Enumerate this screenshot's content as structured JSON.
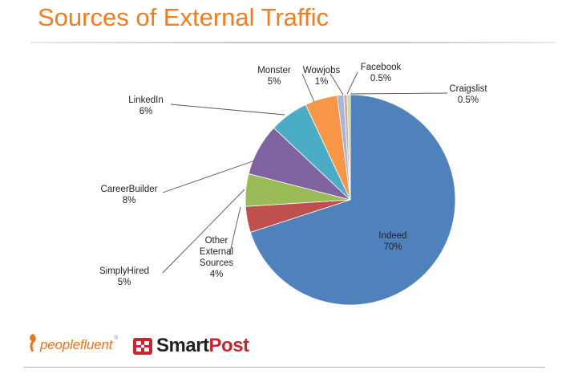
{
  "slide": {
    "title": "Sources of External Traffic"
  },
  "colors": {
    "title": "#f07d1f",
    "accent": "#e8731a",
    "brand_red": "#c8252c"
  },
  "chart_data": {
    "type": "pie",
    "title": "",
    "start_angle_deg": 0,
    "direction": "clockwise",
    "slices": [
      {
        "label": "Indeed",
        "value_label": "70%",
        "value": 70,
        "color": "#4f81bd"
      },
      {
        "label": "Other External Sources",
        "label_lines": [
          "Other",
          "External",
          "Sources"
        ],
        "value_label": "4%",
        "value": 4,
        "color": "#c0504d"
      },
      {
        "label": "SimplyHired",
        "value_label": "5%",
        "value": 5,
        "color": "#9bbb59"
      },
      {
        "label": "CareerBuilder",
        "value_label": "8%",
        "value": 8,
        "color": "#8064a2"
      },
      {
        "label": "LinkedIn",
        "value_label": "6%",
        "value": 6,
        "color": "#4bacc6"
      },
      {
        "label": "Monster",
        "value_label": "5%",
        "value": 5,
        "color": "#f79646"
      },
      {
        "label": "Wowjobs",
        "value_label": "1%",
        "value": 1,
        "color": "#a5b6d8"
      },
      {
        "label": "Facebook",
        "value_label": "0.5%",
        "value": 0.5,
        "color": "#d3a6a4"
      },
      {
        "label": "Craigslist",
        "value_label": "0.5%",
        "value": 0.5,
        "color": "#c9d69e"
      }
    ]
  },
  "footer": {
    "logo_peoplefluent": "peoplefluent",
    "logo_peoplefluent_mark": "®",
    "logo_smart": "Smart",
    "logo_post": "Post"
  }
}
